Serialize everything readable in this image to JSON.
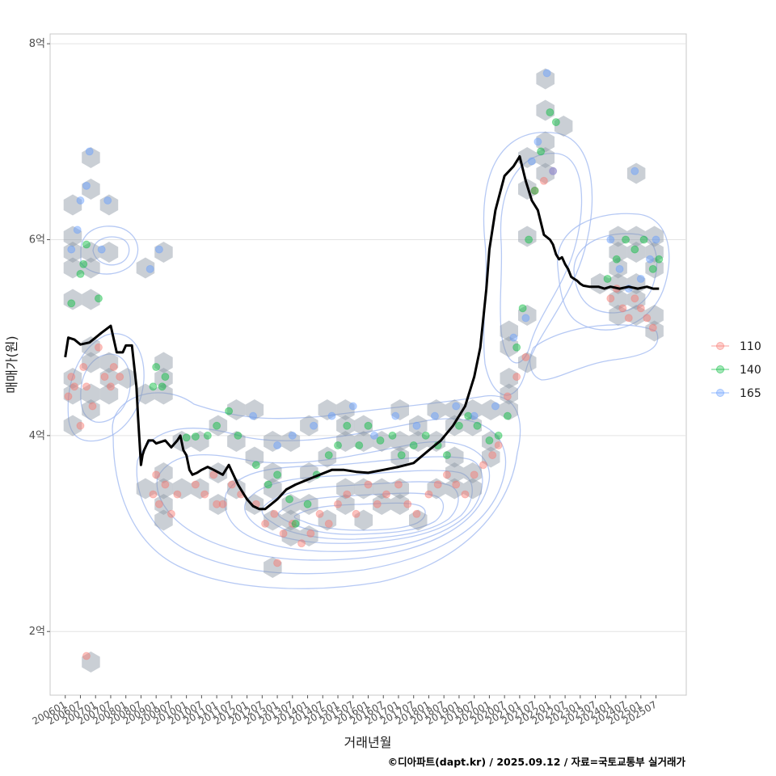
{
  "chart_data": {
    "type": "scatter",
    "title": "",
    "xlabel": "거래년월",
    "ylabel": "매매가(원)",
    "caption": "©디아파트(dapt.kr) / 2025.09.12 / 자료=국토교통부 실거래가",
    "ylim": [
      1.35,
      8.1
    ],
    "y_ticks": [
      {
        "value": 2,
        "label": "2억"
      },
      {
        "value": 4,
        "label": "4억"
      },
      {
        "value": 6,
        "label": "6억"
      },
      {
        "value": 8,
        "label": "8억"
      }
    ],
    "x_range": [
      2005.5,
      2026.5
    ],
    "x_ticks": [
      "200601",
      "200607",
      "200701",
      "200707",
      "200801",
      "200807",
      "200901",
      "200907",
      "201001",
      "201007",
      "201101",
      "201107",
      "201201",
      "201207",
      "201301",
      "201307",
      "201401",
      "201407",
      "201501",
      "201507",
      "201601",
      "201607",
      "201701",
      "201707",
      "201801",
      "201807",
      "201901",
      "201907",
      "202001",
      "202007",
      "202101",
      "202107",
      "202201",
      "202207",
      "202301",
      "202307",
      "202401",
      "202407",
      "202501",
      "202507"
    ],
    "legend": {
      "position": "right",
      "entries": [
        {
          "name": "110",
          "color": "#F8766D"
        },
        {
          "name": "140",
          "color": "#00BA38"
        },
        {
          "name": "165",
          "color": "#619CFF"
        }
      ]
    },
    "trend_line": {
      "name": "median price",
      "color": "#000000",
      "x": [
        2006.0,
        2006.1,
        2006.3,
        2006.5,
        2006.8,
        2007.0,
        2007.2,
        2007.5,
        2007.7,
        2007.9,
        2008.0,
        2008.2,
        2008.35,
        2008.4,
        2008.5,
        2008.55,
        2008.6,
        2008.75,
        2008.9,
        2009.0,
        2009.3,
        2009.5,
        2009.7,
        2009.8,
        2009.9,
        2010.0,
        2010.1,
        2010.2,
        2010.35,
        2010.5,
        2010.7,
        2010.9,
        2011.2,
        2011.4,
        2011.7,
        2011.9,
        2012.0,
        2012.2,
        2012.4,
        2012.6,
        2012.8,
        2013.0,
        2013.3,
        2013.6,
        2014.0,
        2014.4,
        2014.8,
        2015.2,
        2015.6,
        2016.0,
        2016.5,
        2017.0,
        2017.5,
        2018.0,
        2018.4,
        2018.8,
        2019.2,
        2019.5,
        2019.7,
        2019.9,
        2020.0,
        2020.2,
        2020.5,
        2020.8,
        2021.0,
        2021.2,
        2021.4,
        2021.6,
        2021.8,
        2022.0,
        2022.1,
        2022.2,
        2022.3,
        2022.4,
        2022.5,
        2022.6,
        2022.7,
        2022.8,
        2022.9,
        2023.0,
        2023.1,
        2023.3,
        2023.6,
        2023.8,
        2024.0,
        2024.3,
        2024.6,
        2024.9,
        2025.2,
        2025.4,
        2025.6
      ],
      "y": [
        4.8,
        5.0,
        4.98,
        4.93,
        4.95,
        5.0,
        5.05,
        5.12,
        4.85,
        4.85,
        4.92,
        4.92,
        4.5,
        4.2,
        3.7,
        3.8,
        3.85,
        3.95,
        3.95,
        3.92,
        3.95,
        3.88,
        3.95,
        4.0,
        3.85,
        3.8,
        3.65,
        3.6,
        3.62,
        3.65,
        3.68,
        3.65,
        3.6,
        3.7,
        3.5,
        3.4,
        3.35,
        3.28,
        3.25,
        3.25,
        3.3,
        3.35,
        3.45,
        3.5,
        3.55,
        3.6,
        3.65,
        3.65,
        3.63,
        3.62,
        3.65,
        3.68,
        3.72,
        3.85,
        3.95,
        4.1,
        4.3,
        4.6,
        4.9,
        5.5,
        5.9,
        6.3,
        6.65,
        6.75,
        6.85,
        6.6,
        6.4,
        6.3,
        6.05,
        6.0,
        5.95,
        5.85,
        5.8,
        5.82,
        5.75,
        5.7,
        5.62,
        5.6,
        5.58,
        5.55,
        5.53,
        5.52,
        5.52,
        5.5,
        5.52,
        5.5,
        5.52,
        5.5,
        5.52,
        5.5,
        5.5
      ]
    },
    "series": [
      {
        "name": "110",
        "points": [
          [
            2006.1,
            4.4
          ],
          [
            2006.2,
            4.6
          ],
          [
            2006.3,
            4.5
          ],
          [
            2006.5,
            4.1
          ],
          [
            2006.6,
            4.7
          ],
          [
            2006.7,
            4.5
          ],
          [
            2006.9,
            4.3
          ],
          [
            2007.1,
            4.9
          ],
          [
            2007.3,
            4.6
          ],
          [
            2007.5,
            4.5
          ],
          [
            2007.6,
            4.7
          ],
          [
            2007.8,
            4.6
          ],
          [
            2008.9,
            3.4
          ],
          [
            2009.0,
            3.6
          ],
          [
            2009.1,
            3.3
          ],
          [
            2009.3,
            3.5
          ],
          [
            2009.5,
            3.2
          ],
          [
            2009.7,
            3.4
          ],
          [
            2010.3,
            3.5
          ],
          [
            2010.6,
            3.4
          ],
          [
            2010.9,
            3.6
          ],
          [
            2011.2,
            3.3
          ],
          [
            2011.5,
            3.5
          ],
          [
            2011.8,
            3.4
          ],
          [
            2012.3,
            3.3
          ],
          [
            2012.6,
            3.1
          ],
          [
            2012.9,
            3.2
          ],
          [
            2013.2,
            3.0
          ],
          [
            2013.5,
            3.1
          ],
          [
            2013.8,
            2.9
          ],
          [
            2014.1,
            3.0
          ],
          [
            2014.4,
            3.2
          ],
          [
            2014.7,
            3.1
          ],
          [
            2015.0,
            3.3
          ],
          [
            2015.3,
            3.4
          ],
          [
            2015.6,
            3.2
          ],
          [
            2016.0,
            3.5
          ],
          [
            2016.3,
            3.3
          ],
          [
            2016.6,
            3.4
          ],
          [
            2017.0,
            3.5
          ],
          [
            2017.3,
            3.3
          ],
          [
            2017.6,
            3.2
          ],
          [
            2018.0,
            3.4
          ],
          [
            2018.3,
            3.5
          ],
          [
            2018.6,
            3.6
          ],
          [
            2018.9,
            3.5
          ],
          [
            2019.2,
            3.4
          ],
          [
            2019.5,
            3.6
          ],
          [
            2019.8,
            3.7
          ],
          [
            2020.1,
            3.8
          ],
          [
            2020.3,
            3.9
          ],
          [
            2020.6,
            4.4
          ],
          [
            2020.9,
            4.6
          ],
          [
            2021.2,
            4.8
          ],
          [
            2021.5,
            6.5
          ],
          [
            2021.8,
            6.6
          ],
          [
            2022.1,
            6.7
          ],
          [
            2024.0,
            5.4
          ],
          [
            2024.2,
            5.5
          ],
          [
            2024.4,
            5.3
          ],
          [
            2024.6,
            5.2
          ],
          [
            2024.8,
            5.4
          ],
          [
            2025.0,
            5.3
          ],
          [
            2025.2,
            5.2
          ],
          [
            2025.4,
            5.1
          ],
          [
            2006.7,
            1.75
          ],
          [
            2011.0,
            3.3
          ],
          [
            2013.0,
            2.7
          ]
        ]
      },
      {
        "name": "140",
        "points": [
          [
            2006.6,
            5.75
          ],
          [
            2006.7,
            5.95
          ],
          [
            2006.5,
            5.65
          ],
          [
            2006.2,
            5.35
          ],
          [
            2007.1,
            5.4
          ],
          [
            2008.9,
            4.5
          ],
          [
            2009.0,
            4.7
          ],
          [
            2009.2,
            4.5
          ],
          [
            2009.3,
            4.6
          ],
          [
            2010.0,
            3.98
          ],
          [
            2010.3,
            3.99
          ],
          [
            2010.7,
            4.0
          ],
          [
            2011.0,
            4.1
          ],
          [
            2011.4,
            4.25
          ],
          [
            2011.7,
            4.0
          ],
          [
            2012.3,
            3.7
          ],
          [
            2012.7,
            3.5
          ],
          [
            2013.0,
            3.6
          ],
          [
            2013.4,
            3.35
          ],
          [
            2013.6,
            3.1
          ],
          [
            2014.0,
            3.3
          ],
          [
            2014.3,
            3.6
          ],
          [
            2014.7,
            3.8
          ],
          [
            2015.0,
            3.9
          ],
          [
            2015.3,
            4.1
          ],
          [
            2015.7,
            3.9
          ],
          [
            2016.0,
            4.1
          ],
          [
            2016.4,
            3.95
          ],
          [
            2016.8,
            4.0
          ],
          [
            2017.1,
            3.8
          ],
          [
            2017.5,
            3.9
          ],
          [
            2017.9,
            4.0
          ],
          [
            2018.3,
            3.9
          ],
          [
            2018.6,
            3.8
          ],
          [
            2019.0,
            4.1
          ],
          [
            2019.3,
            4.2
          ],
          [
            2019.6,
            4.1
          ],
          [
            2020.0,
            3.95
          ],
          [
            2020.3,
            4.0
          ],
          [
            2020.6,
            4.2
          ],
          [
            2020.9,
            4.9
          ],
          [
            2021.1,
            5.3
          ],
          [
            2021.3,
            6.0
          ],
          [
            2021.5,
            6.5
          ],
          [
            2021.7,
            6.9
          ],
          [
            2022.0,
            7.3
          ],
          [
            2022.2,
            7.2
          ],
          [
            2023.9,
            5.6
          ],
          [
            2024.2,
            5.8
          ],
          [
            2024.5,
            6.0
          ],
          [
            2024.8,
            5.9
          ],
          [
            2025.1,
            6.0
          ],
          [
            2025.4,
            5.7
          ],
          [
            2025.6,
            5.8
          ]
        ]
      },
      {
        "name": "165",
        "points": [
          [
            2006.5,
            6.4
          ],
          [
            2006.7,
            6.55
          ],
          [
            2006.8,
            6.9
          ],
          [
            2007.4,
            6.4
          ],
          [
            2006.4,
            6.1
          ],
          [
            2006.2,
            5.9
          ],
          [
            2007.2,
            5.9
          ],
          [
            2008.8,
            5.7
          ],
          [
            2009.1,
            5.9
          ],
          [
            2012.2,
            4.2
          ],
          [
            2013.0,
            3.9
          ],
          [
            2013.5,
            4.0
          ],
          [
            2014.2,
            4.1
          ],
          [
            2014.8,
            4.2
          ],
          [
            2015.5,
            4.3
          ],
          [
            2016.2,
            4.0
          ],
          [
            2016.9,
            4.2
          ],
          [
            2017.6,
            4.1
          ],
          [
            2018.2,
            4.2
          ],
          [
            2018.9,
            4.3
          ],
          [
            2019.5,
            4.2
          ],
          [
            2020.2,
            4.3
          ],
          [
            2020.8,
            5.0
          ],
          [
            2021.2,
            5.2
          ],
          [
            2021.4,
            6.8
          ],
          [
            2021.6,
            7.0
          ],
          [
            2021.9,
            7.7
          ],
          [
            2022.1,
            6.7
          ],
          [
            2024.0,
            6.0
          ],
          [
            2024.3,
            5.7
          ],
          [
            2024.6,
            5.5
          ],
          [
            2025.0,
            5.6
          ],
          [
            2025.3,
            5.8
          ],
          [
            2025.5,
            6.0
          ],
          [
            2024.8,
            6.7
          ]
        ]
      }
    ]
  }
}
